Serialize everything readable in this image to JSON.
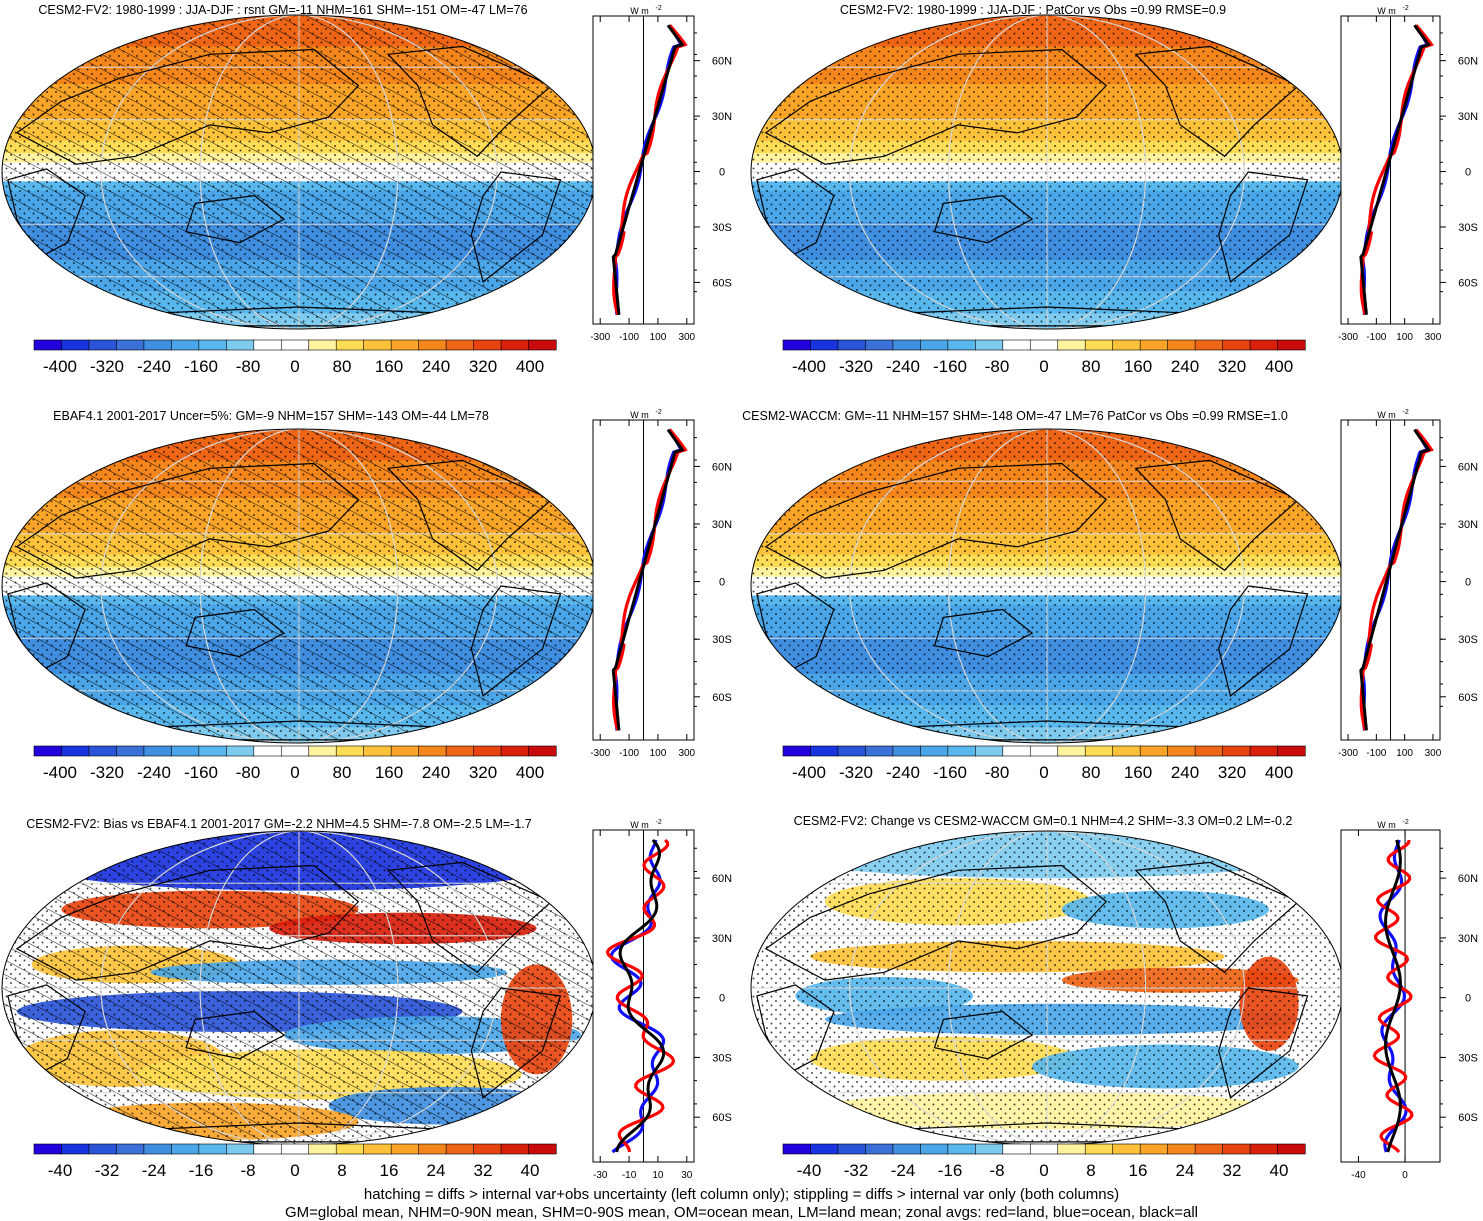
{
  "chart_data": [
    {
      "type": "heatmap",
      "title": "CESM2-FV2: 1980-1999 : JJA-DJF : rsnt GM=-11 NHM=161 SHM=-151 OM=-47 LM=76",
      "colorbar_ticks": [
        "-400",
        "-320",
        "-240",
        "-160",
        "-80",
        "0",
        "80",
        "160",
        "240",
        "320",
        "400"
      ],
      "colorbar_range": [
        -400,
        400
      ],
      "zonal_xticks": [
        "-300",
        "-100",
        "100",
        "300"
      ],
      "zonal_units": "W m",
      "zonal_units_exp": "-2",
      "lat_ticks": [
        "60N",
        "30N",
        "0",
        "30S",
        "60S"
      ],
      "hatching": true,
      "profile": "seasonal"
    },
    {
      "type": "heatmap",
      "title": "CESM2-FV2: 1980-1999 : JJA-DJF : PatCor vs Obs =0.99 RMSE=0.9",
      "colorbar_ticks": [
        "-400",
        "-320",
        "-240",
        "-160",
        "-80",
        "0",
        "80",
        "160",
        "240",
        "320",
        "400"
      ],
      "colorbar_range": [
        -400,
        400
      ],
      "zonal_xticks": [
        "-300",
        "-100",
        "100",
        "300"
      ],
      "zonal_units": "W m",
      "zonal_units_exp": "-2",
      "lat_ticks": [
        "60N",
        "30N",
        "0",
        "30S",
        "60S"
      ],
      "hatching": false,
      "profile": "seasonal"
    },
    {
      "type": "heatmap",
      "title": "EBAF4.1 2001-2017 Uncer=5%: GM=-9 NHM=157 SHM=-143 OM=-44 LM=78",
      "colorbar_ticks": [
        "-400",
        "-320",
        "-240",
        "-160",
        "-80",
        "0",
        "80",
        "160",
        "240",
        "320",
        "400"
      ],
      "colorbar_range": [
        -400,
        400
      ],
      "zonal_xticks": [
        "-300",
        "-100",
        "100",
        "300"
      ],
      "zonal_units": "W m",
      "zonal_units_exp": "-2",
      "lat_ticks": [
        "60N",
        "30N",
        "0",
        "30S",
        "60S"
      ],
      "hatching": true,
      "profile": "seasonal"
    },
    {
      "type": "heatmap",
      "title": "CESM2-WACCM: GM=-11 NHM=157 SHM=-148 OM=-47 LM=76 PatCor vs Obs =0.99 RMSE=1.0",
      "colorbar_ticks": [
        "-400",
        "-320",
        "-240",
        "-160",
        "-80",
        "0",
        "80",
        "160",
        "240",
        "320",
        "400"
      ],
      "colorbar_range": [
        -400,
        400
      ],
      "zonal_xticks": [
        "-300",
        "-100",
        "100",
        "300"
      ],
      "zonal_units": "W m",
      "zonal_units_exp": "-2",
      "lat_ticks": [
        "60N",
        "30N",
        "0",
        "30S",
        "60S"
      ],
      "hatching": false,
      "profile": "seasonal"
    },
    {
      "type": "heatmap",
      "title": "CESM2-FV2: Bias vs EBAF4.1 2001-2017 GM=-2.2 NHM=4.5 SHM=-7.8 OM=-2.5 LM=-1.7",
      "colorbar_ticks": [
        "-40",
        "-32",
        "-24",
        "-16",
        "-8",
        "0",
        "8",
        "16",
        "24",
        "32",
        "40"
      ],
      "colorbar_range": [
        -40,
        40
      ],
      "zonal_xticks": [
        "-30",
        "-10",
        "10",
        "30"
      ],
      "zonal_units": "W m",
      "zonal_units_exp": "-2",
      "lat_ticks": [
        "60N",
        "30N",
        "0",
        "30S",
        "60S"
      ],
      "hatching": true,
      "profile": "bias"
    },
    {
      "type": "heatmap",
      "title": "CESM2-FV2: Change vs CESM2-WACCM GM=0.1 NHM=4.2 SHM=-3.3 OM=0.2 LM=-0.2",
      "colorbar_ticks": [
        "-40",
        "-32",
        "-24",
        "-16",
        "-8",
        "0",
        "8",
        "16",
        "24",
        "32",
        "40"
      ],
      "colorbar_range": [
        -40,
        40
      ],
      "zonal_xticks": [
        "-40",
        "0"
      ],
      "zonal_units": "W m",
      "zonal_units_exp": "-2",
      "lat_ticks": [
        "60N",
        "30N",
        "0",
        "30S",
        "60S"
      ],
      "hatching": false,
      "profile": "change"
    }
  ],
  "palette": [
    "#2200dd",
    "#1a33e0",
    "#2a55d8",
    "#3a70d8",
    "#3f8ee0",
    "#4aa6e8",
    "#58b7ec",
    "#7ecbef",
    "#ffffff",
    "#ffffff",
    "#fff3a0",
    "#fedc55",
    "#fdc23a",
    "#faa428",
    "#f5861c",
    "#ee6515",
    "#e8440f",
    "#d9200c",
    "#c80a0a"
  ],
  "legend_colors": {
    "land": "#ff0000",
    "ocean": "#1010ff",
    "all": "#000000"
  },
  "footnote_1": "hatching = diffs > internal var+obs uncertainty (left column only); stippling = diffs > internal var only (both columns)",
  "footnote_2": "GM=global mean, NHM=0-90N mean, SHM=0-90S mean, OM=ocean mean, LM=land mean; zonal avgs: red=land, blue=ocean, black=all"
}
